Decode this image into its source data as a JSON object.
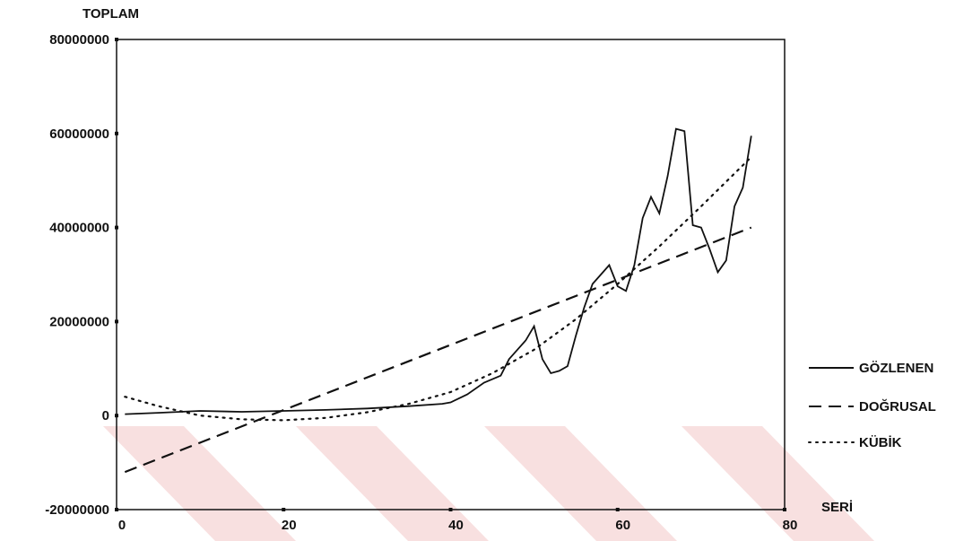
{
  "chart_data": {
    "type": "line",
    "ylabel": "TOPLAM",
    "xlabel": "SERİ",
    "xlim": [
      0,
      80
    ],
    "ylim": [
      -20000000,
      80000000
    ],
    "x_ticks": [
      "0",
      "20",
      "40",
      "60",
      "80"
    ],
    "y_ticks": [
      "80000000",
      "60000000",
      "40000000",
      "20000000",
      "0",
      "-20000000"
    ],
    "grid": false,
    "legend_position": "right",
    "colors": {
      "ink": "#111111",
      "watermark": "#f3c6c6"
    },
    "series": [
      {
        "name": "GÖZLENEN",
        "style": "solid",
        "points": [
          [
            1,
            300000
          ],
          [
            5,
            600000
          ],
          [
            10,
            1000000
          ],
          [
            15,
            800000
          ],
          [
            20,
            1000000
          ],
          [
            25,
            1200000
          ],
          [
            30,
            1500000
          ],
          [
            35,
            2000000
          ],
          [
            39,
            2500000
          ],
          [
            40,
            2800000
          ],
          [
            42,
            4500000
          ],
          [
            44,
            7000000
          ],
          [
            46,
            8500000
          ],
          [
            47,
            12000000
          ],
          [
            48,
            14000000
          ],
          [
            49,
            16000000
          ],
          [
            50,
            19000000
          ],
          [
            51,
            12000000
          ],
          [
            52,
            9000000
          ],
          [
            53,
            9500000
          ],
          [
            54,
            10500000
          ],
          [
            55,
            17000000
          ],
          [
            56,
            23000000
          ],
          [
            57,
            28000000
          ],
          [
            58,
            30000000
          ],
          [
            59,
            32000000
          ],
          [
            60,
            27500000
          ],
          [
            61,
            26500000
          ],
          [
            62,
            32000000
          ],
          [
            63,
            42000000
          ],
          [
            64,
            46500000
          ],
          [
            65,
            43000000
          ],
          [
            66,
            51000000
          ],
          [
            67,
            61000000
          ],
          [
            68,
            60500000
          ],
          [
            69,
            40500000
          ],
          [
            70,
            40000000
          ],
          [
            71,
            35500000
          ],
          [
            72,
            30500000
          ],
          [
            73,
            33000000
          ],
          [
            74,
            44500000
          ],
          [
            75,
            48500000
          ],
          [
            76,
            59500000
          ]
        ]
      },
      {
        "name": "DOĞRUSAL",
        "style": "dashed",
        "points": [
          [
            1,
            -12000000
          ],
          [
            76,
            40000000
          ]
        ]
      },
      {
        "name": "KÜBİK",
        "style": "dotted",
        "points": [
          [
            1,
            4000000
          ],
          [
            5,
            2000000
          ],
          [
            10,
            0
          ],
          [
            15,
            -800000
          ],
          [
            20,
            -1000000
          ],
          [
            25,
            -500000
          ],
          [
            30,
            700000
          ],
          [
            35,
            2500000
          ],
          [
            40,
            5000000
          ],
          [
            45,
            9000000
          ],
          [
            50,
            14000000
          ],
          [
            55,
            20500000
          ],
          [
            60,
            28000000
          ],
          [
            65,
            36000000
          ],
          [
            70,
            44500000
          ],
          [
            76,
            55000000
          ]
        ]
      }
    ]
  }
}
